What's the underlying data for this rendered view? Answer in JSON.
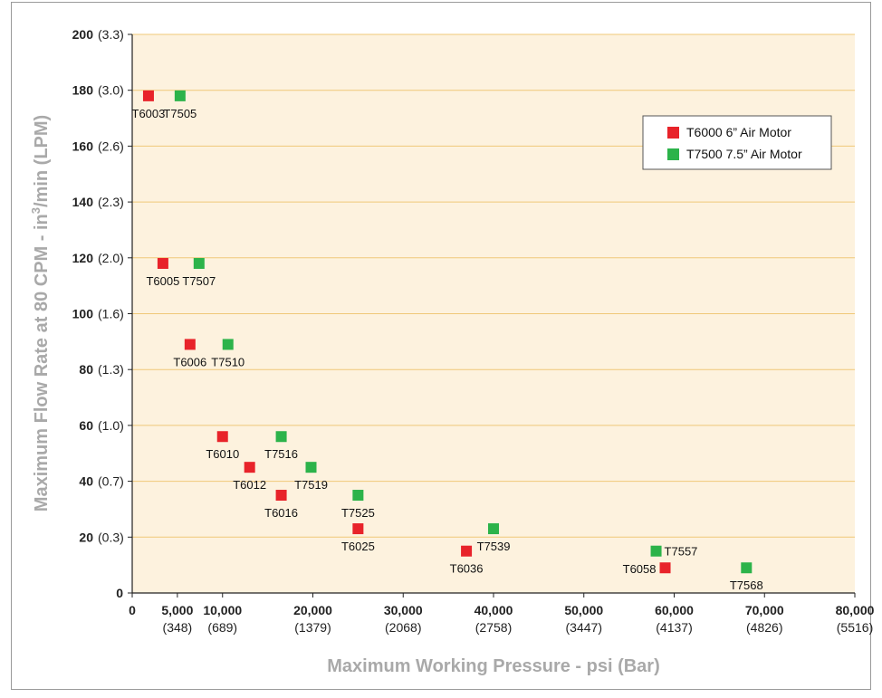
{
  "chart_data": {
    "type": "scatter",
    "xlabel": "Maximum Working Pressure - psi (Bar)",
    "ylabel": "Maximum Flow Rate at 80 CPM - in",
    "ylabel_sup": "3",
    "ylabel_tail": "/min (LPM)",
    "xlim": [
      0,
      80000
    ],
    "ylim": [
      0,
      200
    ],
    "grid": true,
    "legend_position": "top-right",
    "x_ticks": [
      {
        "value": 0,
        "label": "0",
        "sub": ""
      },
      {
        "value": 5000,
        "label": "5,000",
        "sub": "(348)"
      },
      {
        "value": 10000,
        "label": "10,000",
        "sub": "(689)"
      },
      {
        "value": 20000,
        "label": "20,000",
        "sub": "(1379)"
      },
      {
        "value": 30000,
        "label": "30,000",
        "sub": "(2068)"
      },
      {
        "value": 40000,
        "label": "40,000",
        "sub": "(2758)"
      },
      {
        "value": 50000,
        "label": "50,000",
        "sub": "(3447)"
      },
      {
        "value": 60000,
        "label": "60,000",
        "sub": "(4137)"
      },
      {
        "value": 70000,
        "label": "70,000",
        "sub": "(4826)"
      },
      {
        "value": 80000,
        "label": "80,000",
        "sub": "(5516)"
      }
    ],
    "y_ticks": [
      {
        "value": 0,
        "label": "0",
        "sub": ""
      },
      {
        "value": 20,
        "label": "20",
        "sub": "(0.3)"
      },
      {
        "value": 40,
        "label": "40",
        "sub": "(0.7)"
      },
      {
        "value": 60,
        "label": "60",
        "sub": "(1.0)"
      },
      {
        "value": 80,
        "label": "80",
        "sub": "(1.3)"
      },
      {
        "value": 100,
        "label": "100",
        "sub": "(1.6)"
      },
      {
        "value": 120,
        "label": "120",
        "sub": "(2.0)"
      },
      {
        "value": 140,
        "label": "140",
        "sub": "(2.3)"
      },
      {
        "value": 160,
        "label": "160",
        "sub": "(2.6)"
      },
      {
        "value": 180,
        "label": "180",
        "sub": "(3.0)"
      },
      {
        "value": 200,
        "label": "200",
        "sub": "(3.3)"
      }
    ],
    "series": [
      {
        "name": "T6000 6” Air Motor",
        "color": "#e8232a",
        "points": [
          {
            "x": 1800,
            "y": 178,
            "label": "T6003"
          },
          {
            "x": 3400,
            "y": 118,
            "label": "T6005"
          },
          {
            "x": 6400,
            "y": 89,
            "label": "T6006"
          },
          {
            "x": 10000,
            "y": 56,
            "label": "T6010"
          },
          {
            "x": 13000,
            "y": 45,
            "label": "T6012"
          },
          {
            "x": 16500,
            "y": 35,
            "label": "T6016"
          },
          {
            "x": 25000,
            "y": 23,
            "label": "T6025"
          },
          {
            "x": 37000,
            "y": 15,
            "label": "T6036"
          },
          {
            "x": 59000,
            "y": 9,
            "label": "T6058"
          }
        ]
      },
      {
        "name": "T7500 7.5” Air Motor",
        "color": "#2cb34a",
        "points": [
          {
            "x": 5300,
            "y": 178,
            "label": "T7505"
          },
          {
            "x": 7400,
            "y": 118,
            "label": "T7507"
          },
          {
            "x": 10600,
            "y": 89,
            "label": "T7510"
          },
          {
            "x": 16500,
            "y": 56,
            "label": "T7516"
          },
          {
            "x": 19800,
            "y": 45,
            "label": "T7519"
          },
          {
            "x": 25000,
            "y": 35,
            "label": "T7525"
          },
          {
            "x": 40000,
            "y": 23,
            "label": "T7539"
          },
          {
            "x": 58000,
            "y": 15,
            "label": "T7557"
          },
          {
            "x": 68000,
            "y": 9,
            "label": "T7568"
          }
        ]
      }
    ]
  },
  "colors": {
    "plot_background": "#fdf2de",
    "gridline": "#f0c878",
    "axis_title": "#a9a9a9"
  }
}
